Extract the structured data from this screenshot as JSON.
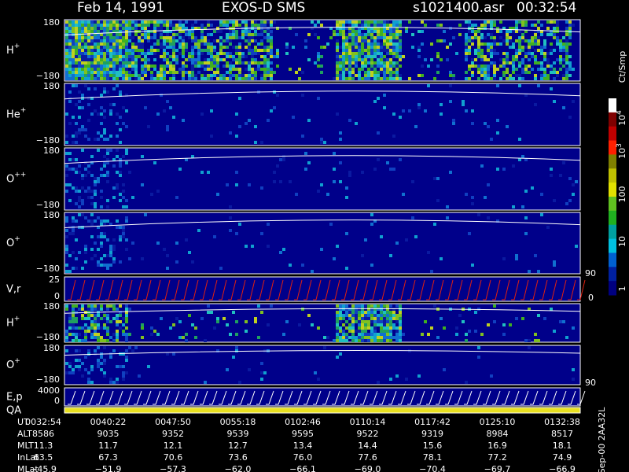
{
  "header": {
    "date": "Feb 14, 1991",
    "instrument": "EXOS-D SMS",
    "file": "s1021400.asr",
    "time": "00:32:54"
  },
  "panels": [
    {
      "label": "H",
      "sup": "+",
      "top": "180",
      "bottom": "−180"
    },
    {
      "label": "He",
      "sup": "+",
      "top": "180",
      "bottom": "−180"
    },
    {
      "label": "O",
      "sup": "++",
      "top": "180",
      "bottom": "−180"
    },
    {
      "label": "O",
      "sup": "+",
      "top": "180",
      "bottom": "−180"
    },
    {
      "label": "V,r",
      "top": "25",
      "bottom": "0",
      "right_top": "90",
      "right_bottom": "0"
    },
    {
      "label": "H",
      "sup": "+",
      "top": "180",
      "bottom": "−180"
    },
    {
      "label": "O",
      "sup": "+",
      "top": "180",
      "bottom": "−180"
    },
    {
      "label": "E,p",
      "top": "4000",
      "bottom": "0",
      "right_top": "90"
    },
    {
      "label": "QA"
    }
  ],
  "colorbar": {
    "unit": "Ct/Smp",
    "labels": [
      {
        "base": "10",
        "exp": "4"
      },
      {
        "base": "10",
        "exp": "3"
      },
      {
        "base": "100"
      },
      {
        "base": "10"
      },
      {
        "base": "1"
      }
    ]
  },
  "footer": {
    "rows": [
      {
        "label": "UT",
        "values": [
          "0032:54",
          "0040:22",
          "0047:50",
          "0055:18",
          "0102:46",
          "0110:14",
          "0117:42",
          "0125:10",
          "0132:38"
        ]
      },
      {
        "label": "ALT",
        "values": [
          "8586",
          "9035",
          "9352",
          "9539",
          "9595",
          "9522",
          "9319",
          "8984",
          "8517"
        ]
      },
      {
        "label": "MLT",
        "values": [
          "11.3",
          "11.7",
          "12.1",
          "12.7",
          "13.4",
          "14.4",
          "15.6",
          "16.9",
          "18.1"
        ]
      },
      {
        "label": "InLat",
        "values": [
          "63.5",
          "67.3",
          "70.6",
          "73.6",
          "76.0",
          "77.6",
          "78.1",
          "77.2",
          "74.9"
        ]
      },
      {
        "label": "MLat",
        "values": [
          "−45.9",
          "−51.9",
          "−57.3",
          "−62.0",
          "−66.1",
          "−69.0",
          "−70.4",
          "−69.7",
          "−66.9"
        ]
      }
    ],
    "side": "Sep-00  2AA32L"
  }
}
